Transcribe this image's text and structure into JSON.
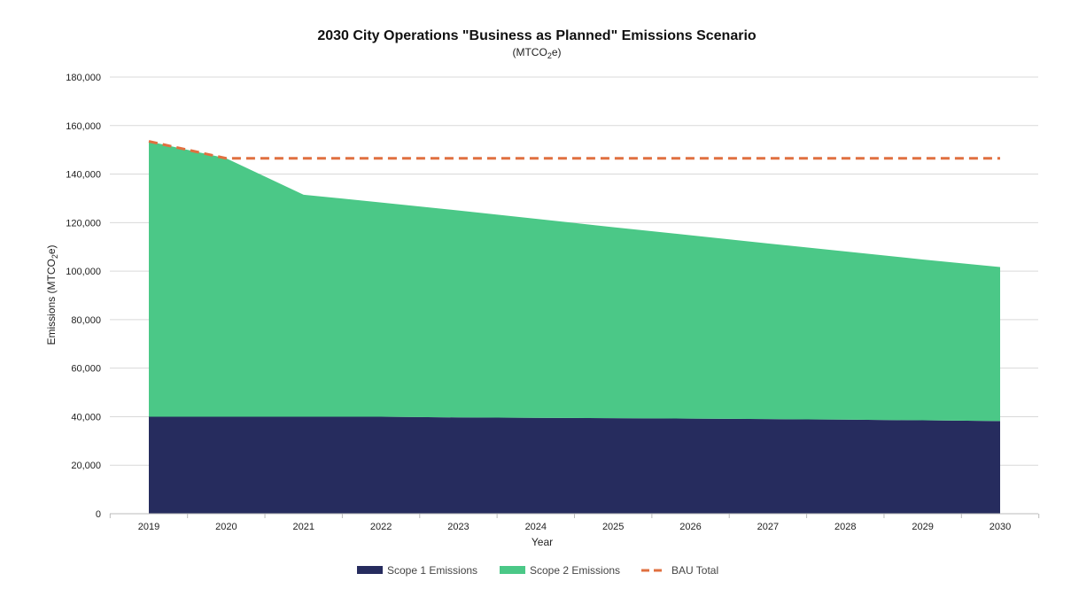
{
  "chart_data": {
    "type": "area",
    "title": "2030 City Operations \"Business as Planned\" Emissions Scenario",
    "subtitle": {
      "main": "(MTCO",
      "sub": "2",
      "tail": "e)"
    },
    "xlabel": "Year",
    "ylabel": {
      "main": "Emissions (MTCO",
      "sub": "2",
      "tail": "e)"
    },
    "ylim": [
      0,
      180000
    ],
    "yticks": [
      0,
      20000,
      40000,
      60000,
      80000,
      100000,
      120000,
      140000,
      160000,
      180000
    ],
    "ytick_labels": [
      "0",
      "20,000",
      "40,000",
      "60,000",
      "80,000",
      "100,000",
      "120,000",
      "140,000",
      "160,000",
      "180,000"
    ],
    "grid": true,
    "legend_position": "bottom-center",
    "categories": [
      "2019",
      "2020",
      "2021",
      "2022",
      "2023",
      "2024",
      "2025",
      "2026",
      "2027",
      "2028",
      "2029",
      "2030"
    ],
    "series": [
      {
        "name": "Scope 1 Emissions",
        "kind": "stacked-area",
        "color": "#262C5E",
        "values": [
          40000,
          40000,
          40000,
          40000,
          39700,
          39500,
          39400,
          39200,
          39000,
          38800,
          38500,
          38200
        ]
      },
      {
        "name": "Scope 2 Emissions",
        "kind": "stacked-area",
        "color": "#4BC887",
        "values": [
          113500,
          106500,
          91500,
          88300,
          85300,
          82100,
          78700,
          75600,
          72400,
          69300,
          66300,
          63500
        ]
      },
      {
        "name": "BAU Total",
        "kind": "dashed-line",
        "color": "#E07040",
        "values": [
          153500,
          146500,
          146500,
          146500,
          146500,
          146500,
          146500,
          146500,
          146500,
          146500,
          146500,
          146500
        ]
      }
    ]
  }
}
